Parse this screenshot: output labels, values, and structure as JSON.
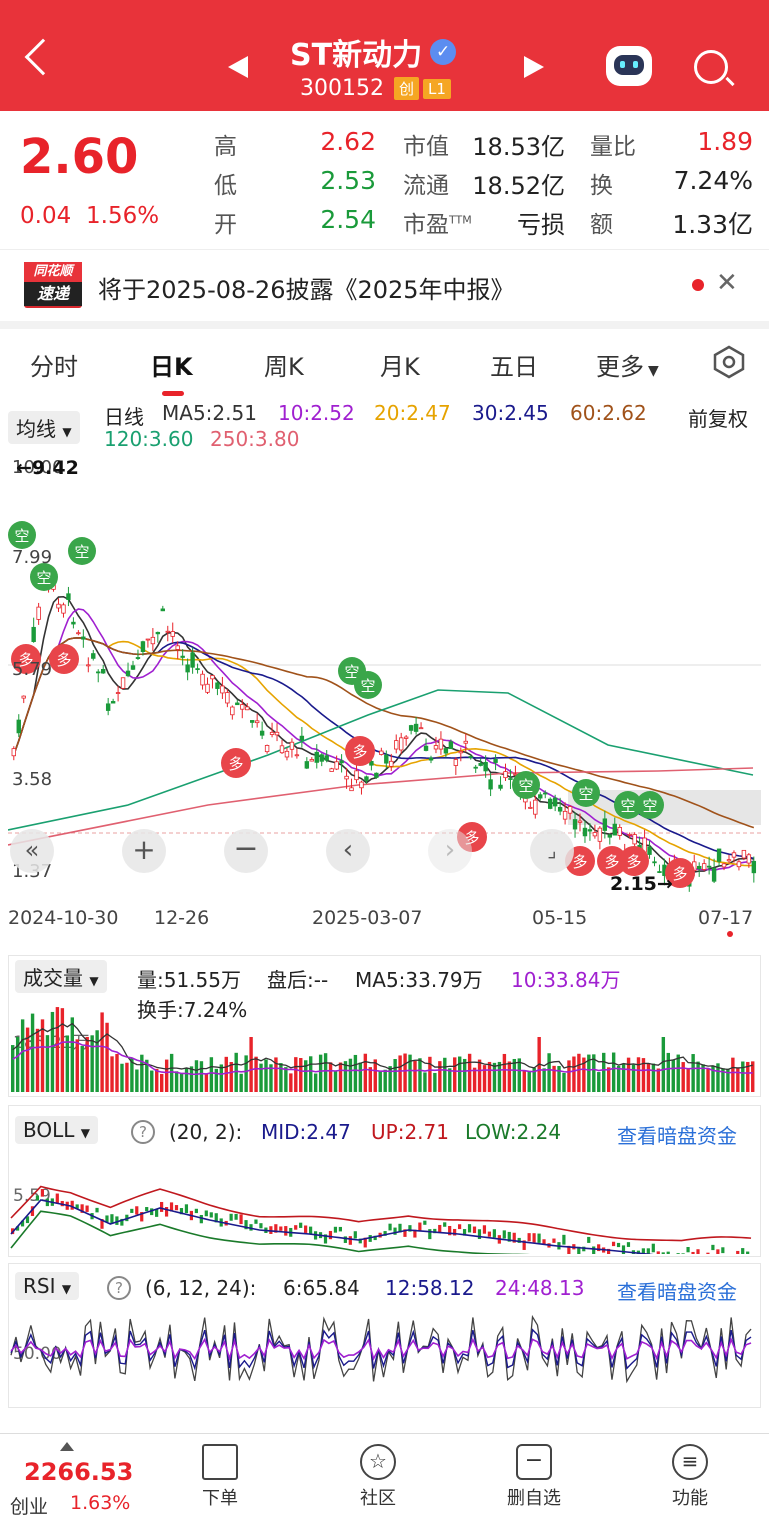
{
  "header": {
    "title": "ST新动力",
    "code": "300152",
    "badge_chuang": "创",
    "badge_level": "L1"
  },
  "quote": {
    "price": "2.60",
    "change": "0.04",
    "change_pct": "1.56%",
    "high_label": "高",
    "high": "2.62",
    "low_label": "低",
    "low": "2.53",
    "open_label": "开",
    "open": "2.54",
    "mcap_label": "市值",
    "mcap": "18.53亿",
    "float_label": "流通",
    "float": "18.52亿",
    "pe_label": "市盈",
    "pe_sup": "TTM",
    "pe": "亏损",
    "volratio_label": "量比",
    "volratio": "1.89",
    "turnover_label": "换",
    "turnover": "7.24%",
    "amount_label": "额",
    "amount": "1.33亿"
  },
  "notice": {
    "logo_top": "同花顺",
    "logo_bottom": "速递",
    "text": "将于2025-08-26披露《2025年中报》"
  },
  "tabs": [
    "分时",
    "日K",
    "周K",
    "月K",
    "五日",
    "更多"
  ],
  "active_tab": "日K",
  "kline": {
    "ma_toggle": "均线",
    "line_label": "日线",
    "ma5": "MA5:2.51",
    "ma10": "10:2.52",
    "ma20": "20:2.47",
    "ma30": "30:2.45",
    "ma60": "60:2.62",
    "ma120": "120:3.60",
    "ma250": "250:3.80",
    "adjust": "前复权",
    "max_label": "9.42",
    "min_label": "2.15",
    "y_top": "10.00",
    "y_mid1": "7.99",
    "y_mid2": "5.79",
    "y_mid3": "3.58",
    "y_bot": "1.37",
    "signal_short": "空",
    "signal_long": "多",
    "dates": [
      "2024-10-30",
      "12-26",
      "2025-03-07",
      "05-15",
      "07-17"
    ]
  },
  "volume": {
    "toggle": "成交量",
    "vol": "量:51.55万",
    "after": "盘后:--",
    "ma5": "MA5:33.79万",
    "ma10": "10:33.84万",
    "turnover": "换手:7.24%",
    "axis": "185.21万"
  },
  "boll": {
    "toggle": "BOLL",
    "params": "(20, 2):",
    "mid": "MID:2.47",
    "up": "UP:2.71",
    "low": "LOW:2.24",
    "link": "查看暗盘资金",
    "axis": "5.59"
  },
  "rsi": {
    "toggle": "RSI",
    "params": "(6, 12, 24):",
    "r6": "6:65.84",
    "r12": "12:58.12",
    "r24": "24:48.13",
    "link": "查看暗盘资金",
    "axis": "50.00"
  },
  "bottom": {
    "index_value": "2266.53",
    "index_name": "创业",
    "index_pct": "1.63%",
    "nav": [
      "下单",
      "社区",
      "删自选",
      "功能"
    ]
  },
  "colors": {
    "brand_red": "#e8333a",
    "up": "#e8232a",
    "down": "#1a9a3a",
    "ma5": "#333333",
    "ma10": "#a020d0",
    "ma20": "#e6a300",
    "ma30": "#1a1a8c",
    "ma60": "#a0521a",
    "ma120": "#1aa070",
    "ma250": "#e06070"
  }
}
